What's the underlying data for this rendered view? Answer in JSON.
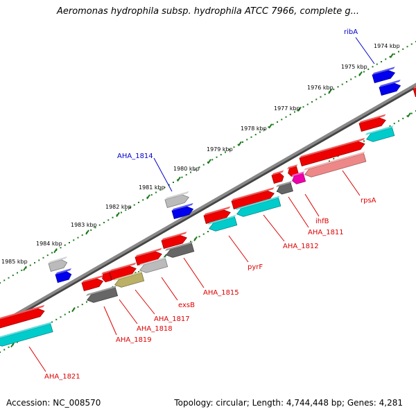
{
  "title": "Aeromonas hydrophila subsp. hydrophila ATCC 7966, complete g...",
  "footer": {
    "accession": "Accession: NC_008570",
    "topology": "Topology: circular; Length: 4,744,448 bp; Genes: 4,281"
  },
  "colors": {
    "backbone": "#888888",
    "tick_major": "#1a7a1a",
    "tick_minor": "#1a7a1a",
    "gene_red": "#ee0000",
    "gene_cyan": "#00cccc",
    "gene_blue": "#0000ee",
    "gene_gray_light": "#bbbbbb",
    "gene_gray_dark": "#666666",
    "gene_olive": "#bbb066",
    "gene_pink": "#ee8888",
    "gene_magenta": "#ee00aa",
    "label_red": "#dd0000",
    "label_blue": "#0000cc"
  },
  "ticks": [
    {
      "label": "1974 kbp"
    },
    {
      "label": "1975 kbp"
    },
    {
      "label": "1976 kbp"
    },
    {
      "label": "1977 kbp"
    },
    {
      "label": "1978 kbp"
    },
    {
      "label": "1979 kbp"
    },
    {
      "label": "1980 kbp"
    },
    {
      "label": "1981 kbp"
    },
    {
      "label": "1982 kbp"
    },
    {
      "label": "1983 kbp"
    },
    {
      "label": "1984 kbp"
    },
    {
      "label": "1985 kbp"
    }
  ],
  "genes": [
    {
      "name": "ribA",
      "color": "gene_blue",
      "label_color": "label_blue"
    },
    {
      "name": "AHA_1814",
      "color": "gene_gray_light",
      "label_color": "label_blue"
    },
    {
      "name": "rpsA",
      "color": "gene_pink",
      "label_color": "label_red"
    },
    {
      "name": "ihfB",
      "color": "gene_magenta",
      "label_color": "label_red"
    },
    {
      "name": "AHA_1811",
      "color": "gene_gray_dark",
      "label_color": "label_red"
    },
    {
      "name": "AHA_1812",
      "color": "gene_cyan",
      "label_color": "label_red"
    },
    {
      "name": "pyrF",
      "color": "gene_cyan",
      "label_color": "label_red"
    },
    {
      "name": "AHA_1815",
      "color": "gene_gray_dark",
      "label_color": "label_red"
    },
    {
      "name": "exsB",
      "color": "gene_gray_light",
      "label_color": "label_red"
    },
    {
      "name": "AHA_1817",
      "color": "gene_olive",
      "label_color": "label_red"
    },
    {
      "name": "AHA_1818",
      "color": "gene_gray_dark",
      "label_color": "label_red"
    },
    {
      "name": "AHA_1819",
      "color": "gene_gray_dark",
      "label_color": "label_red"
    },
    {
      "name": "AHA_1821",
      "color": "gene_cyan",
      "label_color": "label_red"
    }
  ]
}
